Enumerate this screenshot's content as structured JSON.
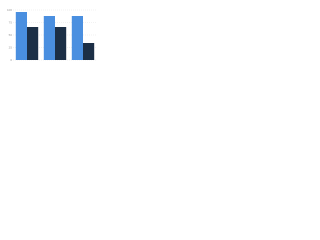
{
  "chart_data": {
    "type": "bar",
    "categories": [
      null,
      null,
      null
    ],
    "series": [
      {
        "color": "#4a8fe0",
        "values": [
          96,
          88,
          88
        ]
      },
      {
        "color": "#1c2f46",
        "values": [
          66,
          66,
          34
        ]
      }
    ],
    "ylim": [
      0,
      100
    ],
    "yticks": [
      0,
      25,
      50,
      75,
      100
    ],
    "grid": true
  }
}
